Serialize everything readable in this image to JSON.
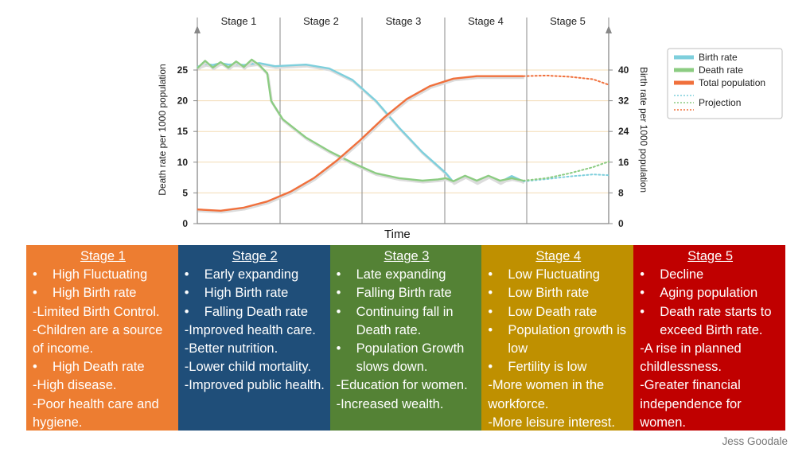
{
  "chart_data": {
    "type": "line",
    "stages": [
      "Stage 1",
      "Stage 2",
      "Stage 3",
      "Stage 4",
      "Stage 5"
    ],
    "xlabel": "Time",
    "left_axis": {
      "label": "Death rate per 1000 population",
      "ticks": [
        0,
        5,
        10,
        15,
        20,
        25
      ],
      "range": [
        0,
        27
      ]
    },
    "right_axis": {
      "label": "Birth rate per 1000 population",
      "ticks": [
        0,
        8,
        16,
        24,
        32,
        40
      ],
      "range": [
        0,
        43.2
      ]
    },
    "legend": {
      "position": "top-right",
      "entries": [
        "Birth rate",
        "Death rate",
        "Total population",
        "Projection"
      ]
    },
    "colors": {
      "birth": "#7ecfdc",
      "death": "#8ccc82",
      "population": "#f0703c",
      "axis": "#888888",
      "grid": "#f3dcb4",
      "stage_divider": "#888888"
    },
    "series": [
      {
        "name": "Birth rate",
        "values": [
          [
            0,
            40.8
          ],
          [
            2,
            41.6
          ],
          [
            4,
            41.3
          ],
          [
            6,
            41.8
          ],
          [
            8,
            41.4
          ],
          [
            10,
            41.5
          ],
          [
            12,
            41.3
          ],
          [
            14,
            41.6
          ],
          [
            16,
            41.8
          ],
          [
            20,
            41.0
          ],
          [
            24,
            41.2
          ],
          [
            28,
            41.4
          ],
          [
            34,
            40.4
          ],
          [
            40,
            37.4
          ],
          [
            46,
            32.0
          ],
          [
            52,
            25.0
          ],
          [
            58,
            18.6
          ],
          [
            64,
            13.2
          ],
          [
            66,
            10.8
          ],
          [
            69,
            12.4
          ],
          [
            72,
            10.8
          ],
          [
            75,
            12.4
          ],
          [
            78,
            10.8
          ],
          [
            81,
            12.4
          ],
          [
            84,
            11.0
          ]
        ]
      },
      {
        "name": "Death rate",
        "values": [
          [
            0,
            25.3
          ],
          [
            2,
            26.5
          ],
          [
            4,
            25.4
          ],
          [
            6,
            26.3
          ],
          [
            8,
            25.4
          ],
          [
            10,
            26.4
          ],
          [
            12,
            25.5
          ],
          [
            14,
            26.7
          ],
          [
            16,
            25.8
          ],
          [
            18,
            24.5
          ],
          [
            19,
            20.0
          ],
          [
            22,
            17.0
          ],
          [
            28,
            14.0
          ],
          [
            34,
            11.8
          ],
          [
            40,
            9.9
          ],
          [
            46,
            8.2
          ],
          [
            52,
            7.4
          ],
          [
            58,
            7.0
          ],
          [
            62,
            7.2
          ],
          [
            64,
            7.4
          ],
          [
            66,
            6.9
          ],
          [
            69,
            7.8
          ],
          [
            72,
            7.0
          ],
          [
            75,
            7.8
          ],
          [
            78,
            7.0
          ],
          [
            81,
            7.4
          ],
          [
            84,
            7.0
          ]
        ]
      },
      {
        "name": "Total population",
        "values": [
          [
            0,
            2.3
          ],
          [
            6,
            2.1
          ],
          [
            12,
            2.6
          ],
          [
            18,
            3.6
          ],
          [
            24,
            5.2
          ],
          [
            30,
            7.4
          ],
          [
            36,
            10.3
          ],
          [
            42,
            13.6
          ],
          [
            48,
            17.2
          ],
          [
            54,
            20.3
          ],
          [
            60,
            22.4
          ],
          [
            66,
            23.6
          ],
          [
            72,
            24.0
          ],
          [
            78,
            24.0
          ],
          [
            84,
            24.0
          ]
        ]
      },
      {
        "name": "Projection",
        "values": [
          {
            "of": "Birth rate",
            "points": [
              [
                84,
                11.0
              ],
              [
                90,
                11.6
              ],
              [
                96,
                12.3
              ],
              [
                102,
                12.8
              ],
              [
                106,
                12.6
              ]
            ]
          },
          {
            "of": "Death rate",
            "points": [
              [
                84,
                7.0
              ],
              [
                90,
                7.4
              ],
              [
                96,
                8.2
              ],
              [
                102,
                9.2
              ],
              [
                106,
                10.1
              ]
            ]
          },
          {
            "of": "Total population",
            "points": [
              [
                84,
                24.0
              ],
              [
                90,
                24.1
              ],
              [
                96,
                23.9
              ],
              [
                102,
                23.5
              ],
              [
                106,
                22.6
              ]
            ]
          }
        ]
      }
    ]
  },
  "panels": [
    {
      "title": "Stage 1",
      "color": "#ed7d31",
      "lines": [
        {
          "bullet": true,
          "text": "High Fluctuating"
        },
        {
          "bullet": true,
          "text": "High Birth rate"
        },
        {
          "bullet": false,
          "text": "-Limited Birth Control."
        },
        {
          "bullet": false,
          "text": "-Children are a source of income."
        },
        {
          "bullet": true,
          "text": "High Death rate"
        },
        {
          "bullet": false,
          "text": "-High disease."
        },
        {
          "bullet": false,
          "text": "-Poor health care and hygiene."
        }
      ]
    },
    {
      "title": "Stage 2",
      "color": "#1f4e79",
      "lines": [
        {
          "bullet": true,
          "text": "Early expanding"
        },
        {
          "bullet": true,
          "text": "High Birth rate"
        },
        {
          "bullet": true,
          "text": "Falling Death rate"
        },
        {
          "bullet": false,
          "text": "-Improved health care."
        },
        {
          "bullet": false,
          "text": "-Better nutrition."
        },
        {
          "bullet": false,
          "text": "-Lower child mortality."
        },
        {
          "bullet": false,
          "text": "-Improved public health."
        }
      ]
    },
    {
      "title": "Stage 3",
      "color": "#548235",
      "lines": [
        {
          "bullet": true,
          "text": "Late expanding"
        },
        {
          "bullet": true,
          "text": "Falling Birth rate"
        },
        {
          "bullet": true,
          "text": "Continuing fall in Death rate."
        },
        {
          "bullet": true,
          "text": "Population Growth slows down."
        },
        {
          "bullet": false,
          "text": "-Education for women."
        },
        {
          "bullet": false,
          "text": "-Increased wealth."
        }
      ]
    },
    {
      "title": "Stage 4",
      "color": "#bf9000",
      "lines": [
        {
          "bullet": true,
          "text": "Low Fluctuating"
        },
        {
          "bullet": true,
          "text": "Low Birth rate"
        },
        {
          "bullet": true,
          "text": "Low Death rate"
        },
        {
          "bullet": true,
          "text": "Population growth is low"
        },
        {
          "bullet": true,
          "text": "Fertility is low"
        },
        {
          "bullet": false,
          "text": "-More women in the workforce."
        },
        {
          "bullet": false,
          "text": "-More leisure interest."
        }
      ]
    },
    {
      "title": "Stage 5",
      "color": "#c00000",
      "lines": [
        {
          "bullet": true,
          "text": "Decline"
        },
        {
          "bullet": true,
          "text": "Aging population"
        },
        {
          "bullet": true,
          "text": "Death rate starts to exceed Birth rate."
        },
        {
          "bullet": false,
          "text": "-A rise in planned childlessness."
        },
        {
          "bullet": false,
          "text": "-Greater financial independence for women."
        }
      ]
    }
  ],
  "bullet_char": "•",
  "credit": "Jess Goodale"
}
